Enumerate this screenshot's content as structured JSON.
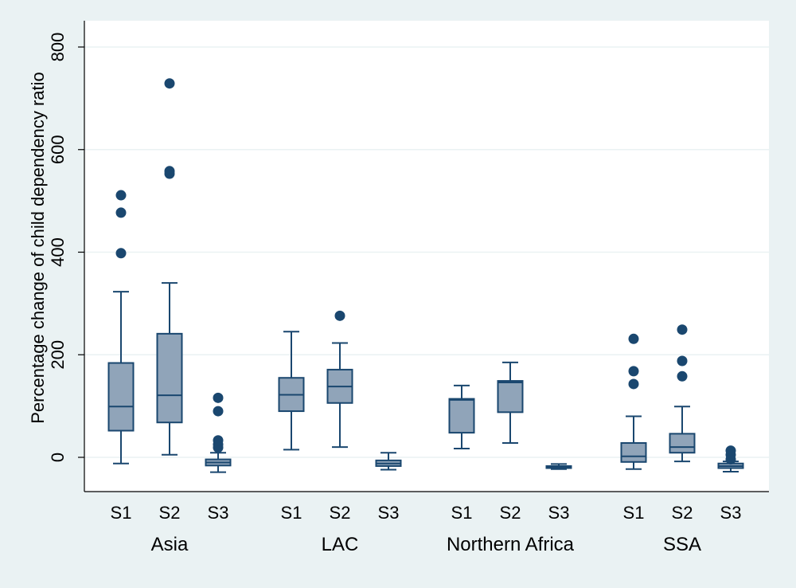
{
  "chart_data": {
    "type": "box",
    "ylabel": "Percentage change of child dependency ratio",
    "ylim": [
      -70,
      840
    ],
    "yticks": [
      0,
      200,
      400,
      600,
      800
    ],
    "grid": true,
    "colors": {
      "background": "#eaf2f3",
      "plot_background": "#ffffff",
      "box_fill": "#90a4b9",
      "box_stroke": "#1a476f",
      "grid": "#eaf2f3",
      "axis": "#000000"
    },
    "groups": [
      {
        "name": "Asia",
        "boxes": [
          {
            "label": "S1",
            "whisker_low": -12,
            "q1": 52,
            "median": 99,
            "q3": 184,
            "whisker_high": 323,
            "outliers": [
              398,
              477,
              511
            ]
          },
          {
            "label": "S2",
            "whisker_low": 5,
            "q1": 68,
            "median": 121,
            "q3": 241,
            "whisker_high": 340,
            "outliers": [
              553,
              558,
              729
            ]
          },
          {
            "label": "S3",
            "whisker_low": -29,
            "q1": -16,
            "median": -10,
            "q3": -4,
            "whisker_high": 9,
            "outliers": [
              19,
              25,
              33,
              90,
              116
            ]
          }
        ]
      },
      {
        "name": "LAC",
        "boxes": [
          {
            "label": "S1",
            "whisker_low": 15,
            "q1": 90,
            "median": 122,
            "q3": 155,
            "whisker_high": 245,
            "outliers": []
          },
          {
            "label": "S2",
            "whisker_low": 20,
            "q1": 106,
            "median": 138,
            "q3": 171,
            "whisker_high": 223,
            "outliers": [
              276
            ]
          },
          {
            "label": "S3",
            "whisker_low": -24,
            "q1": -17,
            "median": -12,
            "q3": -6,
            "whisker_high": 9,
            "outliers": []
          }
        ]
      },
      {
        "name": "Northern Africa",
        "boxes": [
          {
            "label": "S1",
            "whisker_low": 17,
            "q1": 48,
            "median": 112,
            "q3": 114,
            "whisker_high": 140,
            "outliers": []
          },
          {
            "label": "S2",
            "whisker_low": 28,
            "q1": 88,
            "median": 146,
            "q3": 149,
            "whisker_high": 185,
            "outliers": []
          },
          {
            "label": "S3",
            "whisker_low": -23,
            "q1": -21,
            "median": -19,
            "q3": -17,
            "whisker_high": -13,
            "outliers": []
          }
        ]
      },
      {
        "name": "SSA",
        "boxes": [
          {
            "label": "S1",
            "whisker_low": -23,
            "q1": -9,
            "median": 2,
            "q3": 28,
            "whisker_high": 80,
            "outliers": [
              143,
              168,
              231
            ]
          },
          {
            "label": "S2",
            "whisker_low": -8,
            "q1": 9,
            "median": 20,
            "q3": 46,
            "whisker_high": 99,
            "outliers": [
              158,
              188,
              249
            ]
          },
          {
            "label": "S3",
            "whisker_low": -28,
            "q1": -21,
            "median": -17,
            "q3": -12,
            "whisker_high": -8,
            "outliers": [
              -4,
              5,
              13
            ]
          }
        ]
      }
    ]
  }
}
